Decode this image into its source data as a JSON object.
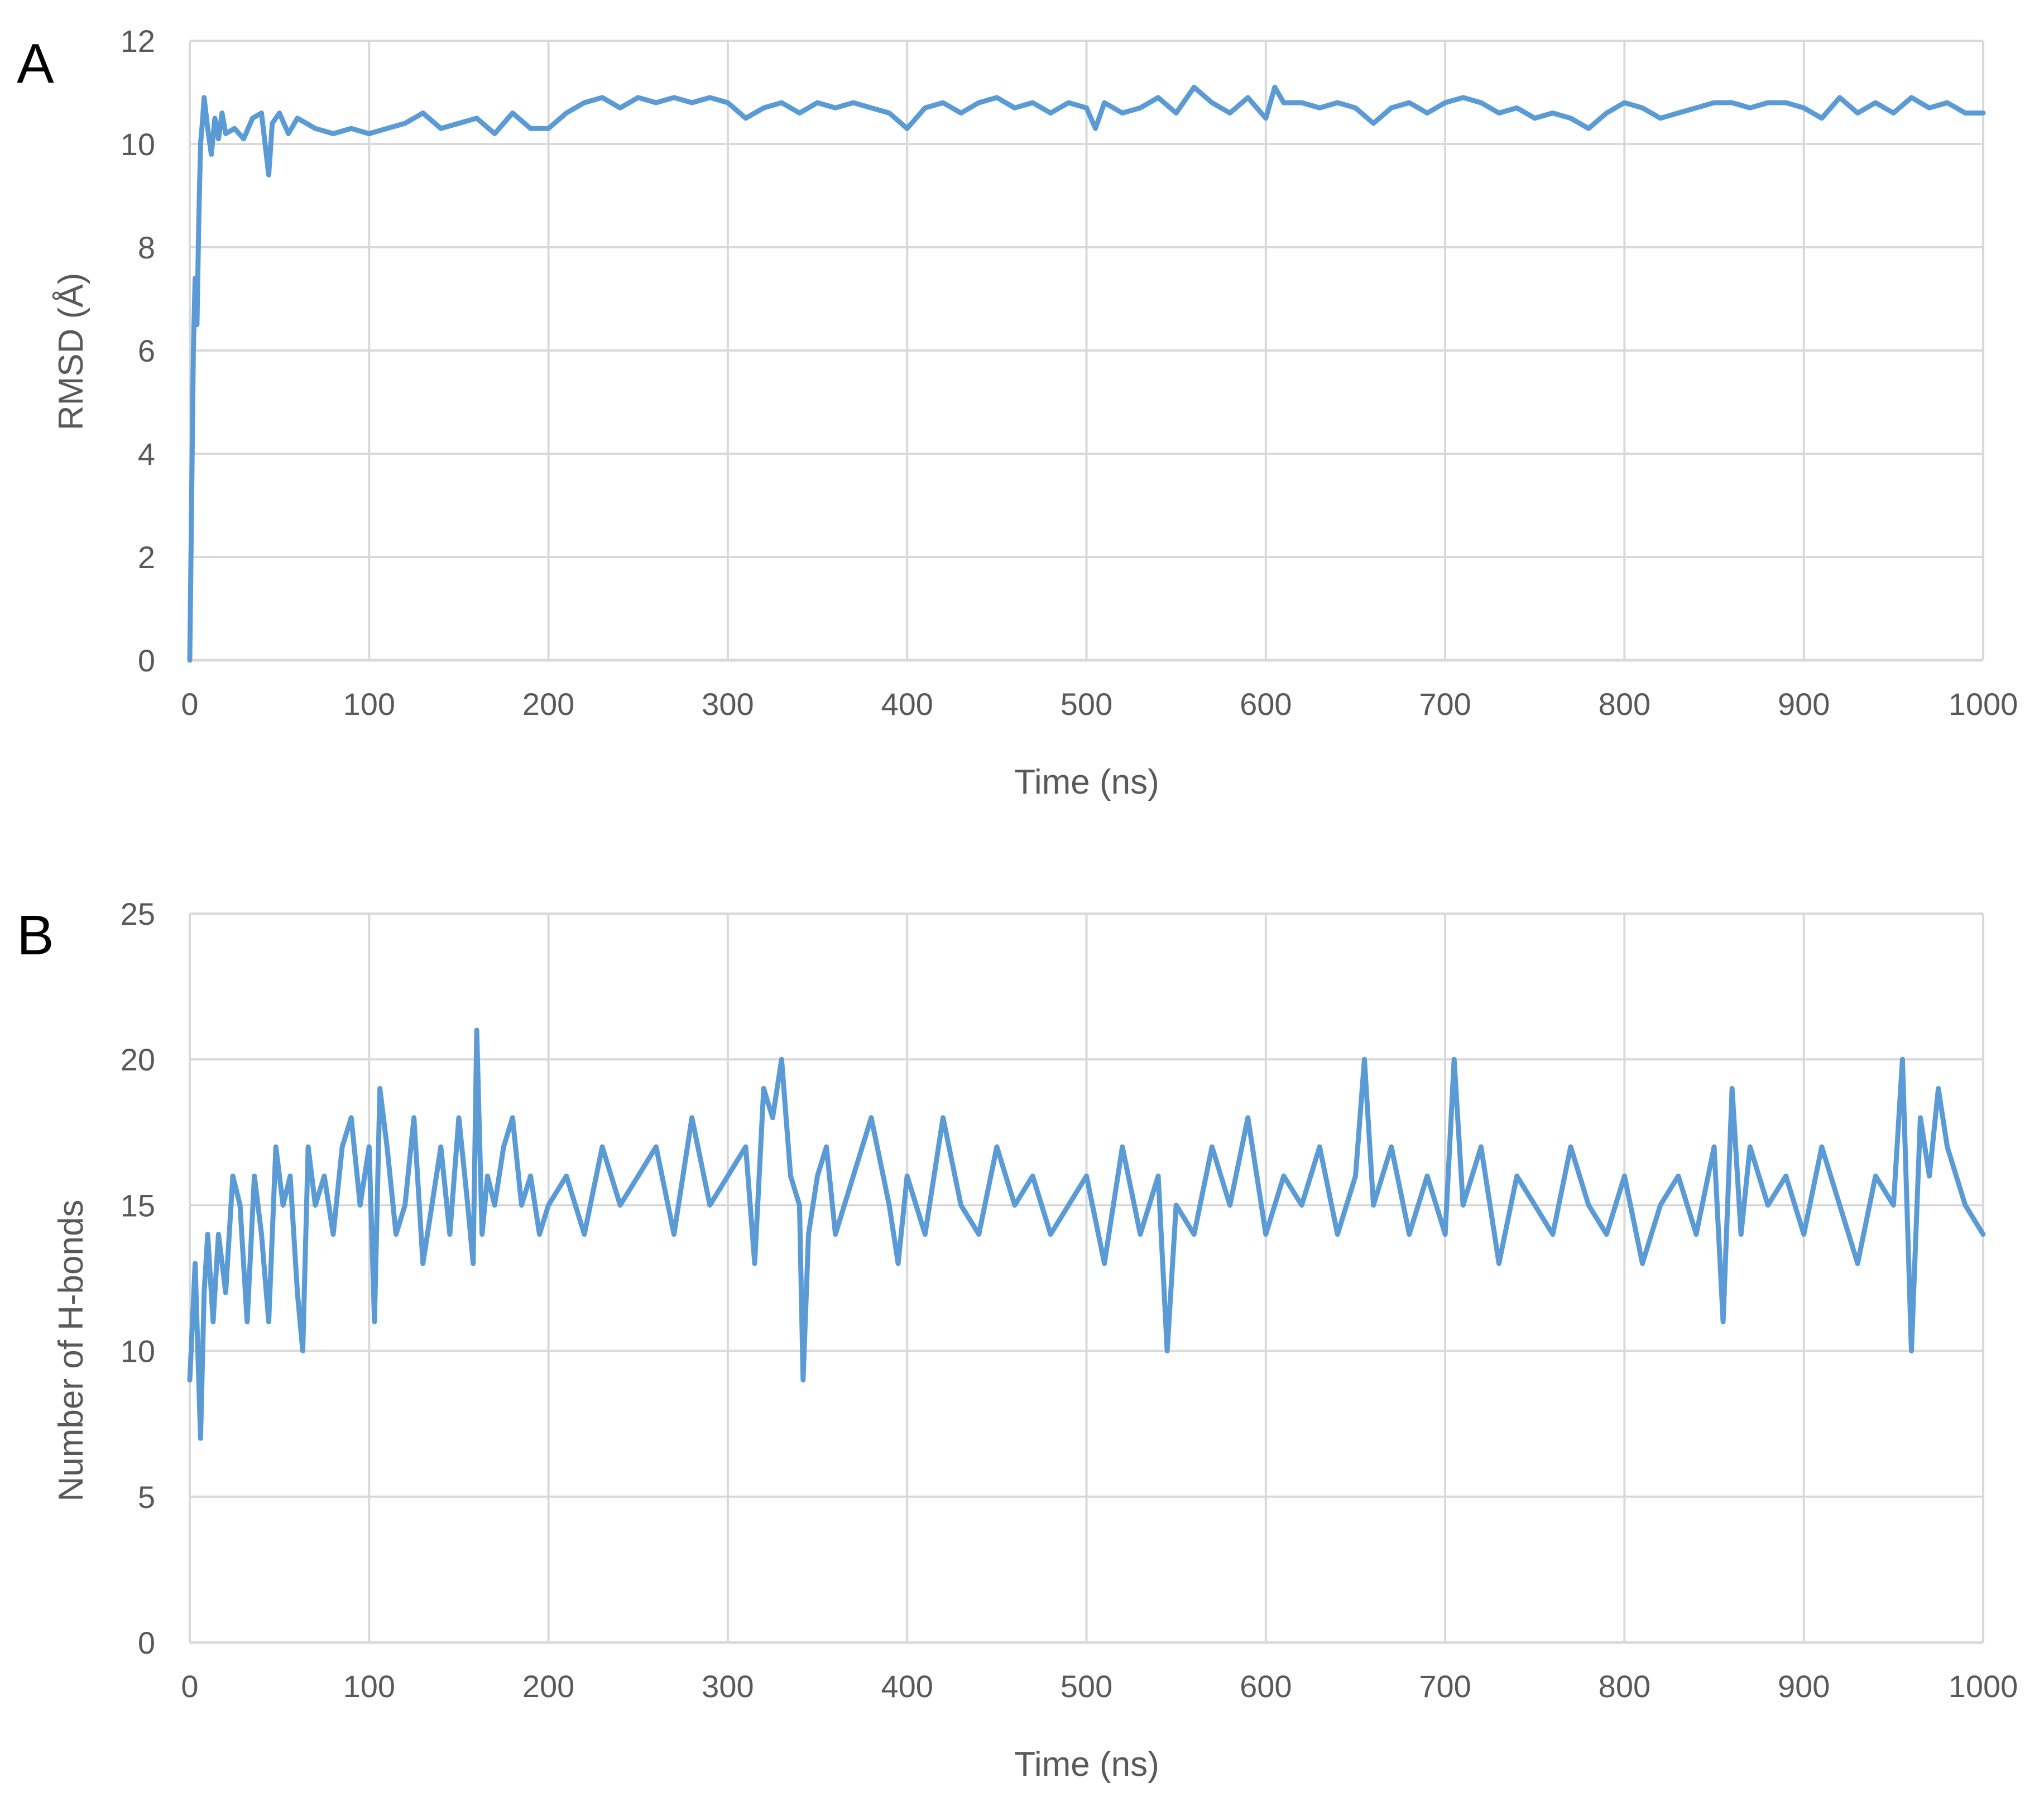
{
  "colors": {
    "series": "#5B9BD5",
    "grid": "#D9D9D9",
    "text": "#595959",
    "panel_label": "#000000"
  },
  "chart_data": [
    {
      "panel": "A",
      "type": "line",
      "xlabel": "Time (ns)",
      "ylabel": "RMSD (Å)",
      "xlim": [
        0,
        1000
      ],
      "ylim": [
        0,
        12
      ],
      "xticks": [
        "0",
        "100",
        "200",
        "300",
        "400",
        "500",
        "600",
        "700",
        "800",
        "900",
        "1000"
      ],
      "yticks": [
        "0",
        "2",
        "4",
        "6",
        "8",
        "10",
        "12"
      ],
      "grid": true,
      "legend": "none",
      "series": [
        {
          "x": [
            0,
            1,
            2,
            3,
            4,
            5,
            6,
            7,
            8,
            10,
            12,
            14,
            16,
            18,
            20,
            25,
            30,
            35,
            40,
            44,
            46,
            50,
            55,
            60,
            70,
            80,
            90,
            100,
            110,
            120,
            130,
            140,
            150,
            160,
            170,
            180,
            190,
            200,
            210,
            220,
            230,
            240,
            250,
            260,
            270,
            280,
            290,
            300,
            310,
            320,
            330,
            340,
            350,
            360,
            370,
            380,
            390,
            400,
            410,
            420,
            430,
            440,
            450,
            460,
            470,
            480,
            490,
            500,
            505,
            510,
            520,
            530,
            540,
            550,
            560,
            570,
            580,
            590,
            600,
            605,
            610,
            620,
            630,
            640,
            650,
            660,
            670,
            680,
            690,
            700,
            710,
            720,
            730,
            740,
            750,
            760,
            770,
            780,
            790,
            800,
            810,
            820,
            830,
            840,
            850,
            860,
            870,
            880,
            890,
            900,
            910,
            920,
            930,
            940,
            950,
            960,
            970,
            980,
            990,
            1000
          ],
          "y": [
            0,
            3,
            6,
            7.4,
            6.5,
            8.5,
            10,
            10.4,
            10.9,
            10.3,
            9.8,
            10.5,
            10.1,
            10.6,
            10.2,
            10.3,
            10.1,
            10.5,
            10.6,
            9.4,
            10.4,
            10.6,
            10.2,
            10.5,
            10.3,
            10.2,
            10.3,
            10.2,
            10.3,
            10.4,
            10.6,
            10.3,
            10.4,
            10.5,
            10.2,
            10.6,
            10.3,
            10.3,
            10.6,
            10.8,
            10.9,
            10.7,
            10.9,
            10.8,
            10.9,
            10.8,
            10.9,
            10.8,
            10.5,
            10.7,
            10.8,
            10.6,
            10.8,
            10.7,
            10.8,
            10.7,
            10.6,
            10.3,
            10.7,
            10.8,
            10.6,
            10.8,
            10.9,
            10.7,
            10.8,
            10.6,
            10.8,
            10.7,
            10.3,
            10.8,
            10.6,
            10.7,
            10.9,
            10.6,
            11.1,
            10.8,
            10.6,
            10.9,
            10.5,
            11.1,
            10.8,
            10.8,
            10.7,
            10.8,
            10.7,
            10.4,
            10.7,
            10.8,
            10.6,
            10.8,
            10.9,
            10.8,
            10.6,
            10.7,
            10.5,
            10.6,
            10.5,
            10.3,
            10.6,
            10.8,
            10.7,
            10.5,
            10.6,
            10.7,
            10.8,
            10.8,
            10.7,
            10.8,
            10.8,
            10.7,
            10.5,
            10.9,
            10.6,
            10.8,
            10.6,
            10.9,
            10.7,
            10.8,
            10.6,
            10.6
          ]
        }
      ]
    },
    {
      "panel": "B",
      "type": "line",
      "xlabel": "Time (ns)",
      "ylabel": "Number of H-bonds",
      "xlim": [
        0,
        1000
      ],
      "ylim": [
        0,
        25
      ],
      "xticks": [
        "0",
        "100",
        "200",
        "300",
        "400",
        "500",
        "600",
        "700",
        "800",
        "900",
        "1000"
      ],
      "yticks": [
        "0",
        "5",
        "10",
        "15",
        "20",
        "25"
      ],
      "grid": true,
      "legend": "none",
      "series": [
        {
          "x": [
            0,
            3,
            6,
            8,
            10,
            13,
            16,
            20,
            24,
            28,
            32,
            36,
            40,
            44,
            48,
            52,
            56,
            60,
            63,
            66,
            70,
            75,
            80,
            85,
            90,
            95,
            100,
            103,
            106,
            110,
            115,
            120,
            125,
            130,
            135,
            140,
            145,
            150,
            155,
            158,
            160,
            163,
            166,
            170,
            175,
            180,
            185,
            190,
            195,
            200,
            210,
            220,
            230,
            240,
            250,
            260,
            270,
            280,
            290,
            300,
            310,
            315,
            320,
            325,
            330,
            335,
            340,
            342,
            345,
            350,
            355,
            360,
            370,
            380,
            390,
            395,
            400,
            410,
            420,
            430,
            440,
            450,
            460,
            470,
            480,
            490,
            500,
            510,
            520,
            530,
            540,
            545,
            550,
            560,
            570,
            580,
            590,
            600,
            610,
            620,
            630,
            640,
            650,
            655,
            660,
            670,
            680,
            690,
            700,
            705,
            710,
            720,
            730,
            740,
            750,
            760,
            770,
            780,
            790,
            800,
            810,
            820,
            830,
            840,
            850,
            855,
            860,
            865,
            870,
            880,
            890,
            900,
            910,
            920,
            930,
            940,
            950,
            955,
            960,
            965,
            970,
            975,
            980,
            990,
            1000
          ],
          "y": [
            9,
            13,
            7,
            12,
            14,
            11,
            14,
            12,
            16,
            15,
            11,
            16,
            14,
            11,
            17,
            15,
            16,
            12,
            10,
            17,
            15,
            16,
            14,
            17,
            18,
            15,
            17,
            11,
            19,
            17,
            14,
            15,
            18,
            13,
            15,
            17,
            14,
            18,
            15,
            13,
            21,
            14,
            16,
            15,
            17,
            18,
            15,
            16,
            14,
            15,
            16,
            14,
            17,
            15,
            16,
            17,
            14,
            18,
            15,
            16,
            17,
            13,
            19,
            18,
            20,
            16,
            15,
            9,
            14,
            16,
            17,
            14,
            16,
            18,
            15,
            13,
            16,
            14,
            18,
            15,
            14,
            17,
            15,
            16,
            14,
            15,
            16,
            13,
            17,
            14,
            16,
            10,
            15,
            14,
            17,
            15,
            18,
            14,
            16,
            15,
            17,
            14,
            16,
            20,
            15,
            17,
            14,
            16,
            14,
            20,
            15,
            17,
            13,
            16,
            15,
            14,
            17,
            15,
            14,
            16,
            13,
            15,
            16,
            14,
            17,
            11,
            19,
            14,
            17,
            15,
            16,
            14,
            17,
            15,
            13,
            16,
            15,
            20,
            10,
            18,
            16,
            19,
            17,
            15,
            14
          ]
        }
      ]
    }
  ]
}
